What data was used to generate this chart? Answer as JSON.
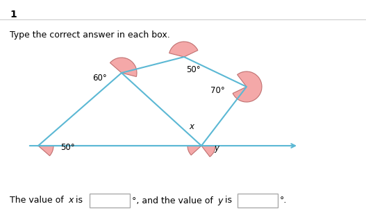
{
  "bg_color": "#ffffff",
  "line_color": "#5BB8D4",
  "arc_color": "#F4A8A8",
  "arc_edge_color": "#C07070",
  "text_color": "#000000",
  "arrow_color": "#5BB8D4",
  "label_1": "1",
  "instruction": "Type the correct answer in each box.",
  "angle_50_top": "50°",
  "angle_60": "60°",
  "angle_70": "70°",
  "angle_50_bot": "50°",
  "angle_x": "x",
  "angle_y": "y",
  "separator_color": "#cccccc",
  "box_edge_color": "#aaaaaa"
}
